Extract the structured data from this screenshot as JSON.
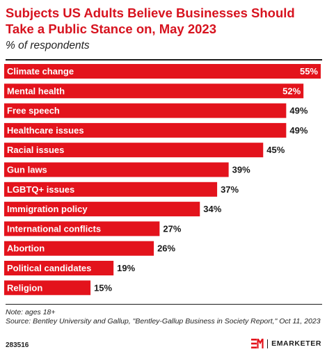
{
  "chart_data": {
    "type": "bar",
    "orientation": "horizontal",
    "title": "Subjects US Adults Believe Businesses Should Take a Public Stance on, May 2023",
    "subtitle": "% of respondents",
    "categories": [
      "Climate change",
      "Mental health",
      "Free speech",
      "Healthcare issues",
      "Racial issues",
      "Gun laws",
      "LGBTQ+ issues",
      "Immigration policy",
      "International conflicts",
      "Abortion",
      "Political candidates",
      "Religion"
    ],
    "values": [
      55,
      52,
      49,
      49,
      45,
      39,
      37,
      34,
      27,
      26,
      19,
      15
    ],
    "value_labels": [
      "55%",
      "52%",
      "49%",
      "49%",
      "45%",
      "39%",
      "37%",
      "34%",
      "27%",
      "26%",
      "19%",
      "15%"
    ],
    "xlim": [
      0,
      55
    ],
    "bar_color": "#e3131c",
    "grid": false
  },
  "footer": {
    "note": "Note: ages 18+",
    "source": "Source: Bentley University and Gallup, \"Bentley-Gallup Business in Society Report,\" Oct 11, 2023",
    "chart_id": "283516",
    "brand": "EMARKETER",
    "brand_color": "#e3131c"
  }
}
